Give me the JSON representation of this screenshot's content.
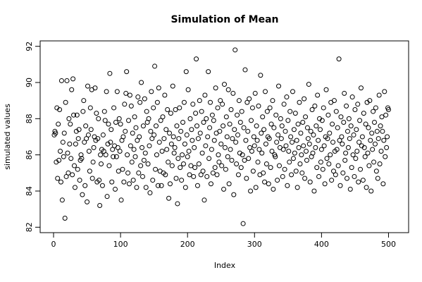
{
  "chart_data": {
    "type": "scatter",
    "title": "Simulation of Mean",
    "xlabel": "Index",
    "ylabel": "simulated values",
    "marker": "open-circle",
    "color": "#000000",
    "grid": false,
    "xlim": [
      -20,
      530
    ],
    "ylim": [
      81.7,
      92.3
    ],
    "xticks": [
      0,
      100,
      200,
      300,
      400,
      500
    ],
    "yticks": [
      82,
      84,
      86,
      88,
      90,
      92
    ],
    "x": [
      1,
      2,
      3,
      4,
      5,
      6,
      7,
      8,
      9,
      10,
      11,
      12,
      13,
      14,
      15,
      16,
      17,
      18,
      19,
      20,
      21,
      22,
      23,
      24,
      25,
      26,
      27,
      28,
      29,
      30,
      31,
      32,
      33,
      34,
      35,
      36,
      37,
      38,
      39,
      40,
      41,
      42,
      43,
      44,
      45,
      46,
      47,
      48,
      49,
      50,
      51,
      52,
      53,
      54,
      55,
      56,
      57,
      58,
      59,
      60,
      61,
      62,
      63,
      64,
      65,
      66,
      67,
      68,
      69,
      70,
      71,
      72,
      73,
      74,
      75,
      76,
      77,
      78,
      79,
      80,
      81,
      82,
      83,
      84,
      85,
      86,
      87,
      88,
      89,
      90,
      91,
      92,
      93,
      94,
      95,
      96,
      97,
      98,
      99,
      100,
      101,
      102,
      103,
      104,
      105,
      106,
      107,
      108,
      109,
      110,
      111,
      112,
      113,
      114,
      115,
      116,
      117,
      118,
      119,
      120,
      121,
      122,
      123,
      124,
      125,
      126,
      127,
      128,
      129,
      130,
      131,
      132,
      133,
      134,
      135,
      136,
      137,
      138,
      139,
      140,
      141,
      142,
      143,
      144,
      145,
      146,
      147,
      148,
      149,
      150,
      151,
      152,
      153,
      154,
      155,
      156,
      157,
      158,
      159,
      160,
      161,
      162,
      163,
      164,
      165,
      166,
      167,
      168,
      169,
      170,
      171,
      172,
      173,
      174,
      175,
      176,
      177,
      178,
      179,
      180,
      181,
      182,
      183,
      184,
      185,
      186,
      187,
      188,
      189,
      190,
      191,
      192,
      193,
      194,
      195,
      196,
      197,
      198,
      199,
      200,
      201,
      202,
      203,
      204,
      205,
      206,
      207,
      208,
      209,
      210,
      211,
      212,
      213,
      214,
      215,
      216,
      217,
      218,
      219,
      220,
      221,
      222,
      223,
      224,
      225,
      226,
      227,
      228,
      229,
      230,
      231,
      232,
      233,
      234,
      235,
      236,
      237,
      238,
      239,
      240,
      241,
      242,
      243,
      244,
      245,
      246,
      247,
      248,
      249,
      250,
      251,
      252,
      253,
      254,
      255,
      256,
      257,
      258,
      259,
      260,
      261,
      262,
      263,
      264,
      265,
      266,
      267,
      268,
      269,
      270,
      271,
      272,
      273,
      274,
      275,
      276,
      277,
      278,
      279,
      280,
      281,
      282,
      283,
      284,
      285,
      286,
      287,
      288,
      289,
      290,
      291,
      292,
      293,
      294,
      295,
      296,
      297,
      298,
      299,
      300,
      301,
      302,
      303,
      304,
      305,
      306,
      307,
      308,
      309,
      310,
      311,
      312,
      313,
      314,
      315,
      316,
      317,
      318,
      319,
      320,
      321,
      322,
      323,
      324,
      325,
      326,
      327,
      328,
      329,
      330,
      331,
      332,
      333,
      334,
      335,
      336,
      337,
      338,
      339,
      340,
      341,
      342,
      343,
      344,
      345,
      346,
      347,
      348,
      349,
      350,
      351,
      352,
      353,
      354,
      355,
      356,
      357,
      358,
      359,
      360,
      361,
      362,
      363,
      364,
      365,
      366,
      367,
      368,
      369,
      370,
      371,
      372,
      373,
      374,
      375,
      376,
      377,
      378,
      379,
      380,
      381,
      382,
      383,
      384,
      385,
      386,
      387,
      388,
      389,
      390,
      391,
      392,
      393,
      394,
      395,
      396,
      397,
      398,
      399,
      400,
      401,
      402,
      403,
      404,
      405,
      406,
      407,
      408,
      409,
      410,
      411,
      412,
      413,
      414,
      415,
      416,
      417,
      418,
      419,
      420,
      421,
      422,
      423,
      424,
      425,
      426,
      427,
      428,
      429,
      430,
      431,
      432,
      433,
      434,
      435,
      436,
      437,
      438,
      439,
      440,
      441,
      442,
      443,
      444,
      445,
      446,
      447,
      448,
      449,
      450,
      451,
      452,
      453,
      454,
      455,
      456,
      457,
      458,
      459,
      460,
      461,
      462,
      463,
      464,
      465,
      466,
      467,
      468,
      469,
      470,
      471,
      472,
      473,
      474,
      475,
      476,
      477,
      478,
      479,
      480,
      481,
      482,
      483,
      484,
      485,
      486,
      487,
      488,
      489,
      490,
      491,
      492,
      493,
      494,
      495,
      496,
      497,
      498,
      499,
      500
    ],
    "values": [
      87.1,
      87.3,
      87.2,
      85.6,
      88.6,
      84.7,
      87.7,
      85.7,
      88.5,
      86.2,
      84.5,
      90.1,
      83.5,
      86.7,
      85.9,
      87.2,
      82.5,
      88.9,
      84.8,
      90.1,
      86.1,
      85.0,
      88.0,
      86.6,
      87.7,
      85.8,
      89.6,
      84.9,
      90.2,
      88.2,
      85.4,
      84.2,
      86.6,
      87.3,
      88.2,
      85.2,
      86.9,
      87.4,
      84.6,
      85.7,
      86.0,
      85.8,
      83.8,
      88.4,
      89.0,
      86.7,
      84.3,
      87.6,
      86.9,
      83.4,
      89.8,
      87.1,
      86.2,
      85.1,
      88.6,
      87.4,
      89.6,
      84.7,
      85.6,
      86.4,
      87.0,
      89.7,
      86.8,
      88.3,
      84.5,
      86.9,
      88.0,
      84.6,
      83.2,
      86.0,
      85.5,
      86.3,
      84.3,
      87.1,
      86.2,
      88.4,
      87.9,
      86.0,
      89.5,
      83.7,
      86.6,
      87.7,
      85.4,
      90.5,
      86.7,
      87.4,
      84.5,
      86.3,
      85.9,
      88.6,
      86.5,
      84.1,
      87.8,
      85.9,
      89.5,
      86.4,
      85.1,
      88.0,
      86.2,
      87.7,
      83.5,
      86.8,
      85.2,
      87.0,
      84.5,
      88.8,
      87.3,
      89.4,
      90.6,
      86.0,
      85.0,
      87.9,
      84.4,
      89.3,
      86.5,
      88.7,
      85.6,
      87.2,
      84.6,
      86.3,
      88.1,
      85.9,
      87.5,
      84.2,
      86.8,
      89.2,
      85.0,
      87.0,
      88.9,
      85.4,
      90.0,
      86.4,
      84.8,
      87.6,
      85.7,
      89.1,
      86.1,
      84.2,
      88.4,
      87.8,
      85.5,
      88.0,
      86.5,
      83.9,
      87.3,
      89.5,
      86.9,
      84.6,
      88.6,
      87.1,
      90.9,
      85.2,
      87.6,
      86.0,
      88.9,
      84.3,
      89.7,
      86.7,
      85.1,
      87.9,
      84.3,
      86.2,
      88.1,
      85.0,
      86.9,
      89.3,
      84.9,
      87.4,
      86.3,
      88.5,
      85.6,
      83.6,
      87.2,
      84.4,
      88.3,
      86.6,
      85.4,
      89.8,
      87.0,
      86.1,
      86.4,
      88.5,
      84.7,
      87.6,
      83.3,
      85.8,
      86.9,
      88.6,
      85.3,
      87.3,
      84.6,
      86.0,
      87.8,
      85.5,
      88.9,
      86.6,
      84.2,
      90.6,
      87.1,
      85.9,
      89.6,
      86.2,
      84.9,
      88.0,
      85.4,
      87.4,
      86.8,
      88.8,
      84.8,
      86.4,
      85.3,
      88.3,
      91.3,
      87.6,
      84.3,
      86.9,
      85.5,
      89.0,
      87.2,
      84.9,
      88.4,
      86.1,
      85.1,
      87.8,
      83.5,
      89.3,
      86.5,
      88.0,
      84.8,
      87.0,
      90.6,
      85.8,
      87.5,
      88.9,
      84.4,
      86.3,
      88.2,
      85.0,
      87.9,
      86.8,
      85.3,
      89.7,
      87.2,
      84.9,
      88.6,
      86.0,
      85.6,
      87.3,
      89.0,
      86.6,
      85.4,
      88.8,
      87.6,
      84.1,
      89.9,
      86.4,
      85.2,
      88.1,
      87.0,
      85.9,
      89.6,
      84.4,
      87.7,
      86.3,
      88.5,
      85.7,
      86.9,
      89.4,
      83.8,
      87.4,
      91.8,
      86.7,
      85.5,
      88.2,
      87.1,
      84.9,
      89.0,
      86.1,
      87.8,
      85.3,
      88.4,
      86.0,
      82.2,
      87.5,
      85.7,
      90.7,
      86.8,
      84.7,
      88.9,
      87.3,
      85.8,
      89.1,
      86.4,
      84.0,
      87.9,
      86.2,
      88.6,
      85.1,
      87.0,
      86.5,
      89.4,
      84.2,
      87.6,
      86.8,
      85.6,
      88.7,
      86.3,
      84.9,
      90.4,
      87.2,
      86.1,
      88.1,
      85.0,
      87.4,
      84.5,
      89.5,
      86.6,
      85.5,
      88.4,
      87.0,
      84.4,
      86.9,
      88.6,
      85.3,
      87.7,
      86.2,
      89.0,
      84.1,
      87.5,
      86.0,
      85.9,
      88.2,
      86.7,
      84.6,
      87.1,
      89.8,
      85.4,
      86.4,
      88.0,
      86.9,
      87.6,
      84.8,
      86.3,
      88.8,
      85.2,
      87.3,
      86.5,
      89.2,
      84.3,
      87.9,
      86.2,
      85.6,
      88.4,
      87.0,
      84.9,
      86.7,
      89.5,
      85.8,
      87.4,
      86.1,
      88.3,
      85.1,
      86.8,
      84.2,
      87.7,
      86.4,
      88.9,
      85.5,
      87.2,
      86.0,
      85.0,
      87.8,
      86.5,
      89.1,
      84.7,
      88.1,
      86.2,
      85.7,
      87.5,
      86.9,
      89.9,
      86.6,
      84.5,
      87.3,
      85.9,
      88.5,
      86.1,
      87.1,
      84.0,
      88.7,
      86.4,
      87.6,
      85.3,
      89.3,
      86.8,
      84.8,
      88.0,
      87.4,
      85.6,
      86.3,
      87.9,
      85.2,
      88.6,
      86.5,
      84.4,
      87.0,
      89.6,
      85.8,
      86.9,
      88.2,
      85.5,
      87.2,
      86.0,
      88.9,
      84.6,
      87.7,
      86.7,
      85.1,
      89.0,
      86.2,
      84.9,
      88.4,
      86.3,
      87.5,
      85.4,
      91.3,
      86.8,
      84.3,
      88.1,
      87.0,
      86.6,
      85.0,
      87.8,
      89.4,
      85.7,
      86.1,
      88.7,
      84.7,
      87.3,
      86.4,
      88.0,
      86.9,
      84.1,
      87.6,
      85.3,
      89.2,
      86.0,
      87.1,
      84.8,
      88.5,
      85.8,
      87.4,
      86.2,
      88.8,
      84.5,
      86.7,
      87.9,
      85.2,
      89.7,
      86.5,
      87.0,
      84.6,
      88.3,
      86.4,
      85.9,
      87.7,
      84.2,
      88.9,
      86.1,
      87.5,
      85.4,
      89.0,
      86.8,
      84.0,
      87.2,
      86.3,
      88.4,
      85.6,
      87.8,
      86.6,
      88.6,
      85.1,
      87.3,
      84.7,
      86.9,
      89.3,
      85.5,
      87.6,
      86.2,
      88.1,
      87.3,
      84.4,
      86.8,
      89.5,
      85.9,
      88.2,
      86.4,
      87.0,
      88.6,
      88.5
    ]
  }
}
